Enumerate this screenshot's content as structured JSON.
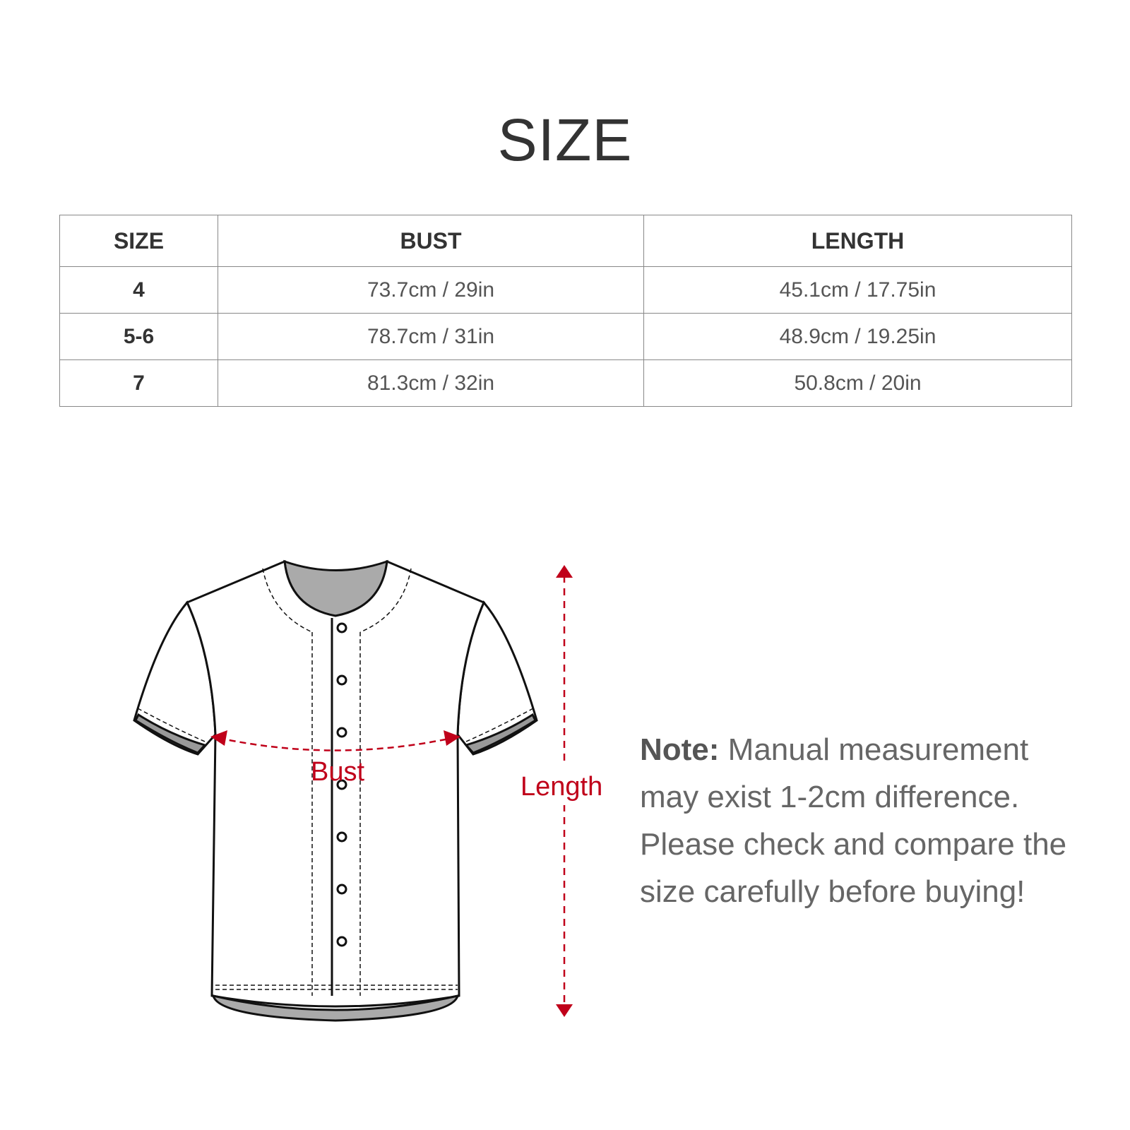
{
  "title": "SIZE",
  "table": {
    "headers": [
      "SIZE",
      "BUST",
      "LENGTH"
    ],
    "rows": [
      {
        "size": "4",
        "bust": "73.7cm / 29in",
        "length": "45.1cm / 17.75in"
      },
      {
        "size": "5-6",
        "bust": "78.7cm / 31in",
        "length": "48.9cm / 19.25in"
      },
      {
        "size": "7",
        "bust": "81.3cm / 32in",
        "length": "50.8cm / 20in"
      }
    ]
  },
  "diagram": {
    "bust_label": "Bust",
    "length_label": "Length",
    "measure_color": "#c0001a"
  },
  "note": {
    "label": "Note:",
    "text": " Manual measurement may exist 1-2cm difference. Please check and compare the size carefully before buying!"
  }
}
